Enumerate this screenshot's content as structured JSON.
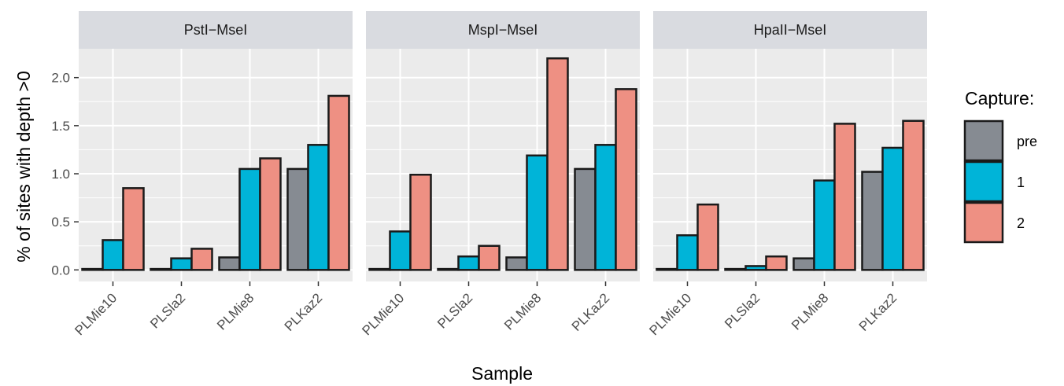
{
  "chart_data": {
    "type": "bar",
    "facet_by": "enzyme",
    "panels": [
      {
        "title": "PstI−MseI",
        "categories": [
          "PLMie10",
          "PLSla2",
          "PLMie8",
          "PLKaz2"
        ],
        "series": [
          {
            "name": "pre",
            "values": [
              0.01,
              0.01,
              0.13,
              1.05
            ]
          },
          {
            "name": "1",
            "values": [
              0.31,
              0.12,
              1.05,
              1.3
            ]
          },
          {
            "name": "2",
            "values": [
              0.85,
              0.22,
              1.16,
              1.81
            ]
          }
        ]
      },
      {
        "title": "MspI−MseI",
        "categories": [
          "PLMie10",
          "PLSla2",
          "PLMie8",
          "PLKaz2"
        ],
        "series": [
          {
            "name": "pre",
            "values": [
              0.01,
              0.01,
              0.13,
              1.05
            ]
          },
          {
            "name": "1",
            "values": [
              0.4,
              0.14,
              1.19,
              1.3
            ]
          },
          {
            "name": "2",
            "values": [
              0.99,
              0.25,
              2.2,
              1.88
            ]
          }
        ]
      },
      {
        "title": "HpaII−MseI",
        "categories": [
          "PLMie10",
          "PLSla2",
          "PLMie8",
          "PLKaz2"
        ],
        "series": [
          {
            "name": "pre",
            "values": [
              0.01,
              0.01,
              0.12,
              1.02
            ]
          },
          {
            "name": "1",
            "values": [
              0.36,
              0.04,
              0.93,
              1.27
            ]
          },
          {
            "name": "2",
            "values": [
              0.68,
              0.14,
              1.52,
              1.55
            ]
          }
        ]
      }
    ],
    "xlabel": "Sample",
    "ylabel": "% of sites with depth >0",
    "ylim": [
      -0.12,
      2.3
    ],
    "yticks": [
      0.0,
      0.5,
      1.0,
      1.5,
      2.0
    ],
    "ytick_labels": [
      "0.0",
      "0.5",
      "1.0",
      "1.5",
      "2.0"
    ],
    "grid": true,
    "legend": {
      "title": "Capture:",
      "placement": "right",
      "entries": [
        "pre",
        "1",
        "2"
      ]
    },
    "colors": {
      "pre": "#868b92",
      "1": "#00b4d8",
      "2": "#ee9083",
      "panel_bg": "#ebebeb",
      "strip_bg": "#d9dbe0",
      "grid": "#ffffff",
      "bar_outline": "#1a1a1a"
    }
  }
}
